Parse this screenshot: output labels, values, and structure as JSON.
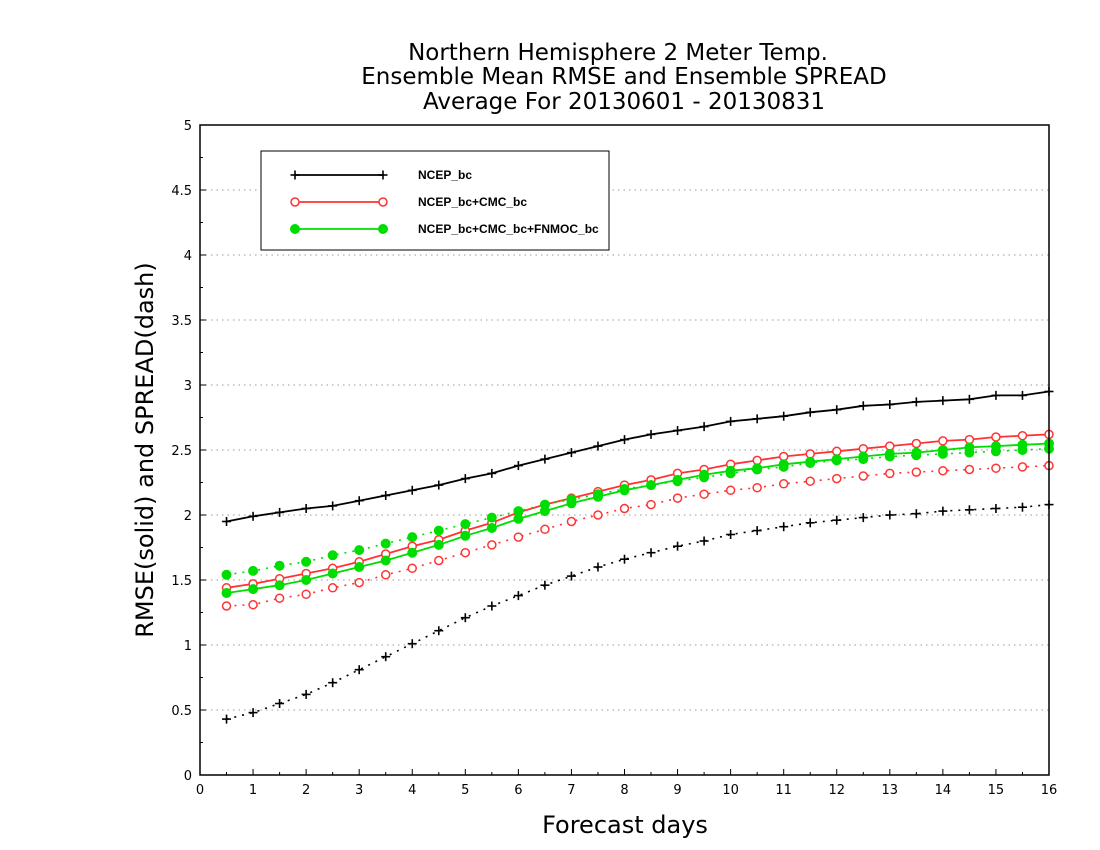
{
  "chart_data": {
    "type": "line",
    "title": [
      "Northern Hemisphere 2 Meter Temp.",
      "Ensemble Mean RMSE and Ensemble SPREAD",
      "Average For 20130601 - 20130831"
    ],
    "xlabel": "Forecast days",
    "ylabel": "RMSE(solid) and SPREAD(dash)",
    "xlim": [
      0,
      16
    ],
    "ylim": [
      0,
      5
    ],
    "xticks": [
      0,
      1,
      2,
      3,
      4,
      5,
      6,
      7,
      8,
      9,
      10,
      11,
      12,
      13,
      14,
      15,
      16
    ],
    "yticks": [
      0,
      0.5,
      1,
      1.5,
      2,
      2.5,
      3,
      3.5,
      4,
      4.5,
      5
    ],
    "ytick_labels": [
      "0",
      "0.5",
      "1",
      "1.5",
      "2",
      "2.5",
      "3",
      "3.5",
      "4",
      "4.5",
      "5"
    ],
    "grid": "horizontal dotted",
    "legend_position": "top-left",
    "x": [
      0.5,
      1,
      1.5,
      2,
      2.5,
      3,
      3.5,
      4,
      4.5,
      5,
      5.5,
      6,
      6.5,
      7,
      7.5,
      8,
      8.5,
      9,
      9.5,
      10,
      10.5,
      11,
      11.5,
      12,
      12.5,
      13,
      13.5,
      14,
      14.5,
      15,
      15.5,
      16
    ],
    "series": [
      {
        "name": "NCEP_bc",
        "color": "#000000",
        "marker": "plus",
        "rmse": [
          1.95,
          1.99,
          2.02,
          2.05,
          2.07,
          2.11,
          2.15,
          2.19,
          2.23,
          2.28,
          2.32,
          2.38,
          2.43,
          2.48,
          2.53,
          2.58,
          2.62,
          2.65,
          2.68,
          2.72,
          2.74,
          2.76,
          2.79,
          2.81,
          2.84,
          2.85,
          2.87,
          2.88,
          2.89,
          2.92,
          2.92,
          2.95
        ],
        "spread": [
          0.43,
          0.48,
          0.55,
          0.62,
          0.71,
          0.81,
          0.91,
          1.01,
          1.11,
          1.21,
          1.3,
          1.38,
          1.46,
          1.53,
          1.6,
          1.66,
          1.71,
          1.76,
          1.8,
          1.85,
          1.88,
          1.91,
          1.94,
          1.96,
          1.98,
          2.0,
          2.01,
          2.03,
          2.04,
          2.05,
          2.06,
          2.08
        ]
      },
      {
        "name": "NCEP_bc+CMC_bc",
        "color": "#ff3333",
        "marker": "open-circle",
        "rmse": [
          1.44,
          1.47,
          1.51,
          1.55,
          1.59,
          1.64,
          1.7,
          1.76,
          1.81,
          1.88,
          1.94,
          2.02,
          2.08,
          2.13,
          2.18,
          2.23,
          2.27,
          2.32,
          2.35,
          2.39,
          2.42,
          2.45,
          2.47,
          2.49,
          2.51,
          2.53,
          2.55,
          2.57,
          2.58,
          2.6,
          2.61,
          2.62
        ],
        "spread": [
          1.3,
          1.31,
          1.36,
          1.39,
          1.44,
          1.48,
          1.54,
          1.59,
          1.65,
          1.71,
          1.77,
          1.83,
          1.89,
          1.95,
          2.0,
          2.05,
          2.08,
          2.13,
          2.16,
          2.19,
          2.21,
          2.24,
          2.26,
          2.28,
          2.3,
          2.32,
          2.33,
          2.34,
          2.35,
          2.36,
          2.37,
          2.38
        ]
      },
      {
        "name": "NCEP_bc+CMC_bc+FNMOC_bc",
        "color": "#00dd00",
        "marker": "filled-circle",
        "rmse": [
          1.4,
          1.43,
          1.46,
          1.5,
          1.55,
          1.6,
          1.65,
          1.71,
          1.77,
          1.84,
          1.9,
          1.97,
          2.03,
          2.09,
          2.14,
          2.19,
          2.23,
          2.27,
          2.31,
          2.34,
          2.36,
          2.39,
          2.41,
          2.43,
          2.45,
          2.47,
          2.48,
          2.5,
          2.52,
          2.53,
          2.54,
          2.55
        ],
        "spread": [
          1.54,
          1.57,
          1.61,
          1.64,
          1.69,
          1.73,
          1.78,
          1.83,
          1.88,
          1.93,
          1.98,
          2.03,
          2.08,
          2.12,
          2.16,
          2.2,
          2.23,
          2.26,
          2.29,
          2.32,
          2.35,
          2.37,
          2.4,
          2.42,
          2.43,
          2.45,
          2.46,
          2.47,
          2.48,
          2.49,
          2.5,
          2.51
        ]
      }
    ]
  }
}
